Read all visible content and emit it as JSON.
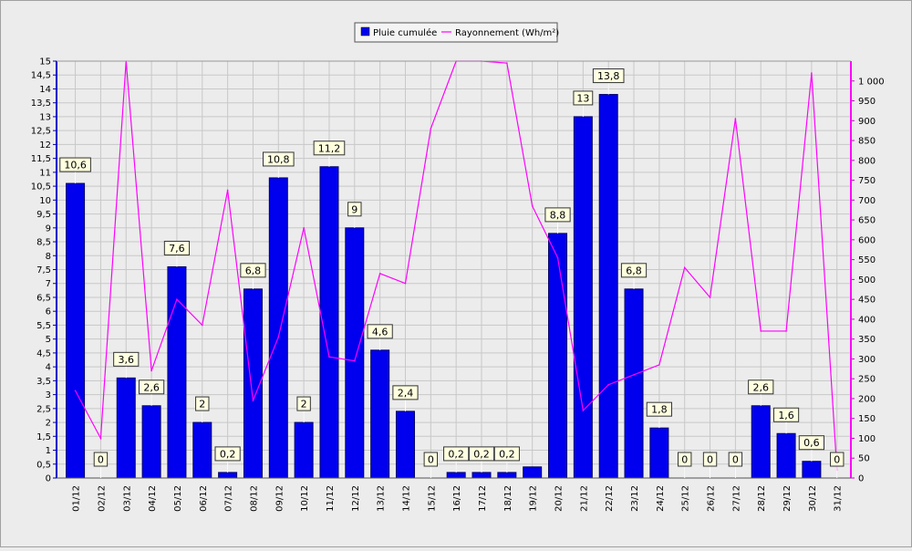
{
  "chart_data": {
    "type": "bar",
    "categories": [
      "01/12",
      "02/12",
      "03/12",
      "04/12",
      "05/12",
      "06/12",
      "07/12",
      "08/12",
      "09/12",
      "10/12",
      "11/12",
      "12/12",
      "13/12",
      "14/12",
      "15/12",
      "16/12",
      "17/12",
      "18/12",
      "19/12",
      "20/12",
      "21/12",
      "22/12",
      "23/12",
      "24/12",
      "25/12",
      "26/12",
      "27/12",
      "28/12",
      "29/12",
      "30/12",
      "31/12"
    ],
    "series": [
      {
        "name": "Pluie cumulée",
        "type": "bar",
        "axis": "left",
        "color": "#0000ee",
        "values": [
          10.6,
          0,
          3.6,
          2.6,
          7.6,
          2,
          0.2,
          6.8,
          10.8,
          2,
          11.2,
          9,
          4.6,
          2.4,
          0,
          0.2,
          0.2,
          0.2,
          0.4,
          8.8,
          13,
          13.8,
          6.8,
          1.8,
          0,
          0,
          0,
          2.6,
          1.6,
          0.6,
          0
        ],
        "data_labels": [
          "10,6",
          "0",
          "3,6",
          "2,6",
          "7,6",
          "2",
          "0,2",
          "6,8",
          "10,8",
          "2",
          "11,2",
          "9",
          "4,6",
          "2,4",
          "0",
          "0,2",
          "0,2",
          "0,2",
          "",
          "8,8",
          "13",
          "13,8",
          "6,8",
          "1,8",
          "0",
          "0",
          "0",
          "2,6",
          "1,6",
          "0,6",
          "0"
        ]
      },
      {
        "name": "Rayonnement (Wh/m²)",
        "type": "line",
        "axis": "right",
        "color": "#ff00ff",
        "values": [
          220,
          100,
          1050,
          270,
          450,
          385,
          725,
          195,
          355,
          630,
          305,
          295,
          515,
          490,
          880,
          1050,
          1050,
          1045,
          685,
          555,
          170,
          235,
          260,
          285,
          530,
          455,
          905,
          370,
          370,
          1020,
          20
        ]
      }
    ],
    "y_left": {
      "ylim": [
        0,
        15
      ],
      "ticks": [
        "0",
        "0,5",
        "1",
        "1,5",
        "2",
        "2,5",
        "3",
        "3,5",
        "4",
        "4,5",
        "5",
        "5,5",
        "6",
        "6,5",
        "7",
        "7,5",
        "8",
        "8,5",
        "9",
        "9,5",
        "10",
        "10,5",
        "11",
        "11,5",
        "12",
        "12,5",
        "13",
        "13,5",
        "14",
        "14,5",
        "15"
      ]
    },
    "y_right": {
      "ylim": [
        0,
        1050
      ],
      "ticks": [
        "0",
        "50",
        "100",
        "150",
        "200",
        "250",
        "300",
        "350",
        "400",
        "450",
        "500",
        "550",
        "600",
        "650",
        "700",
        "750",
        "800",
        "850",
        "900",
        "950",
        "1 000"
      ]
    },
    "grid": true,
    "legend_position": "top-center",
    "colors": {
      "background": "#ececec",
      "plot_background": "#ececec",
      "grid": "#c8c8c8",
      "bar": "#0000ee",
      "line": "#ff00ff",
      "label_box": "#ffffe0"
    }
  }
}
